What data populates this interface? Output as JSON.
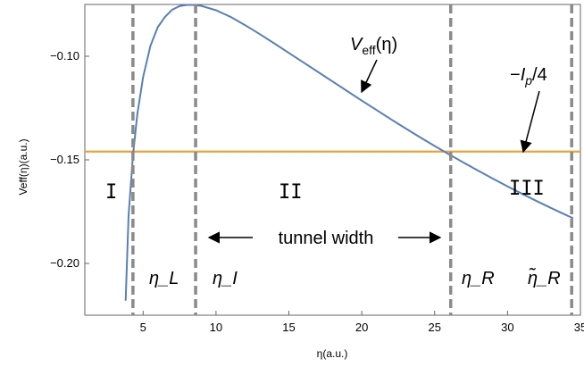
{
  "chart_data": {
    "type": "line",
    "title": "",
    "xlabel": "η(a.u.)",
    "ylabel": "Veff(η)(a.u.)",
    "xlim": [
      1,
      35
    ],
    "ylim": [
      -0.225,
      -0.075
    ],
    "x_ticks": [
      {
        "v": 5,
        "label": "5"
      },
      {
        "v": 10,
        "label": "10"
      },
      {
        "v": 15,
        "label": "15"
      },
      {
        "v": 20,
        "label": "20"
      },
      {
        "v": 25,
        "label": "25"
      },
      {
        "v": 30,
        "label": "30"
      },
      {
        "v": 35,
        "label": "35"
      }
    ],
    "y_ticks": [
      {
        "v": -0.1,
        "label": "−0.10"
      },
      {
        "v": -0.15,
        "label": "−0.15"
      },
      {
        "v": -0.2,
        "label": "−0.20"
      }
    ],
    "series": [
      {
        "name": "V_eff(η)",
        "color": "#5a7fb5",
        "x": [
          3.8,
          4.0,
          4.3,
          4.6,
          5.0,
          5.5,
          6.0,
          6.5,
          7.0,
          7.5,
          8.0,
          8.5,
          9.0,
          10.0,
          11.0,
          12.0,
          13.0,
          14.0,
          15.0,
          16.0,
          17.0,
          18.0,
          19.0,
          20.0,
          21.0,
          22.0,
          23.0,
          24.0,
          25.0,
          26.0,
          27.0,
          28.0,
          29.0,
          30.0,
          31.0,
          32.0,
          33.0,
          34.0,
          34.5
        ],
        "y": [
          -0.218,
          -0.177,
          -0.148,
          -0.128,
          -0.11,
          -0.095,
          -0.086,
          -0.081,
          -0.0775,
          -0.0758,
          -0.0752,
          -0.0752,
          -0.0757,
          -0.0778,
          -0.081,
          -0.085,
          -0.0893,
          -0.0938,
          -0.0984,
          -0.103,
          -0.1076,
          -0.1122,
          -0.1168,
          -0.1214,
          -0.1259,
          -0.1304,
          -0.1348,
          -0.1391,
          -0.1433,
          -0.1474,
          -0.1514,
          -0.1553,
          -0.1591,
          -0.1628,
          -0.1664,
          -0.1699,
          -0.1733,
          -0.1766,
          -0.1782
        ]
      },
      {
        "name": "−I_p/4",
        "color": "#e8a23a",
        "x": [
          1,
          35
        ],
        "y": [
          -0.146,
          -0.146
        ]
      }
    ],
    "vlines": [
      {
        "x": 4.3,
        "label": "η_L"
      },
      {
        "x": 8.6,
        "label": "η_I"
      },
      {
        "x": 26.1,
        "label": "η_R"
      },
      {
        "x": 34.4,
        "label": "η̃_R"
      }
    ],
    "regions": [
      "I",
      "II",
      "III"
    ],
    "annotations": {
      "curve_label": {
        "main": "V",
        "sub": "eff",
        "rest": "(η)"
      },
      "ip_label": {
        "sign": "−",
        "main": "I",
        "sub": "p",
        "rest": "/4"
      },
      "tunnel_width": "tunnel width"
    },
    "grid": false,
    "colors": {
      "curve": "#5a7fb5",
      "ip_line": "#e8a23a",
      "vlines": "#8a8a8a"
    }
  }
}
